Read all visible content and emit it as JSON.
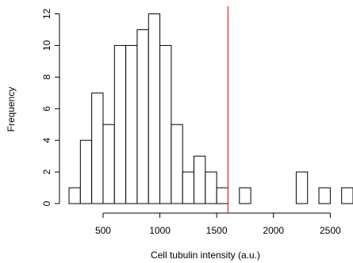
{
  "chart_data": {
    "type": "bar",
    "subtype": "histogram",
    "xlabel": "Cell tubulin intensity (a.u.)",
    "ylabel": "Frequency",
    "bin_width": 100,
    "bins": [
      {
        "x0": 200,
        "x1": 300,
        "count": 1
      },
      {
        "x0": 300,
        "x1": 400,
        "count": 4
      },
      {
        "x0": 400,
        "x1": 500,
        "count": 7
      },
      {
        "x0": 500,
        "x1": 600,
        "count": 5
      },
      {
        "x0": 600,
        "x1": 700,
        "count": 10
      },
      {
        "x0": 700,
        "x1": 800,
        "count": 10
      },
      {
        "x0": 800,
        "x1": 900,
        "count": 11
      },
      {
        "x0": 900,
        "x1": 1000,
        "count": 12
      },
      {
        "x0": 1000,
        "x1": 1100,
        "count": 10
      },
      {
        "x0": 1100,
        "x1": 1200,
        "count": 5
      },
      {
        "x0": 1200,
        "x1": 1300,
        "count": 2
      },
      {
        "x0": 1300,
        "x1": 1400,
        "count": 3
      },
      {
        "x0": 1400,
        "x1": 1500,
        "count": 2
      },
      {
        "x0": 1500,
        "x1": 1600,
        "count": 1
      },
      {
        "x0": 1600,
        "x1": 1700,
        "count": 0
      },
      {
        "x0": 1700,
        "x1": 1800,
        "count": 1
      },
      {
        "x0": 1800,
        "x1": 1900,
        "count": 0
      },
      {
        "x0": 1900,
        "x1": 2000,
        "count": 0
      },
      {
        "x0": 2000,
        "x1": 2100,
        "count": 0
      },
      {
        "x0": 2100,
        "x1": 2200,
        "count": 0
      },
      {
        "x0": 2200,
        "x1": 2300,
        "count": 2
      },
      {
        "x0": 2300,
        "x1": 2400,
        "count": 0
      },
      {
        "x0": 2400,
        "x1": 2500,
        "count": 1
      },
      {
        "x0": 2500,
        "x1": 2600,
        "count": 0
      },
      {
        "x0": 2600,
        "x1": 2700,
        "count": 1
      }
    ],
    "reference_line": {
      "x": 1600,
      "color": "#e0202a"
    },
    "xticks": [
      500,
      1000,
      1500,
      2000,
      2500
    ],
    "yticks": [
      0,
      2,
      4,
      6,
      8,
      10,
      12
    ],
    "xlim": [
      200,
      2700
    ],
    "ylim": [
      0,
      12
    ],
    "grid": false,
    "bar_fill": "#ffffff",
    "bar_stroke": "#000000"
  }
}
